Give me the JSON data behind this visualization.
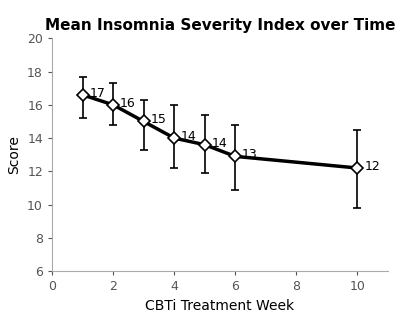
{
  "title": "Mean Insomnia Severity Index over Time",
  "xlabel": "CBTi Treatment Week",
  "ylabel": "Score",
  "x": [
    1,
    2,
    3,
    4,
    5,
    6,
    10
  ],
  "y": [
    16.6,
    16.0,
    15.0,
    14.0,
    13.6,
    12.9,
    12.2
  ],
  "yerr_lower": [
    1.4,
    1.2,
    1.7,
    1.8,
    1.7,
    2.0,
    2.4
  ],
  "yerr_upper": [
    1.1,
    1.3,
    1.3,
    2.0,
    1.8,
    1.9,
    2.3
  ],
  "labels": [
    "17",
    "16",
    "15",
    "14",
    "14",
    "13",
    "12"
  ],
  "label_offsets_x": [
    0.22,
    0.22,
    0.22,
    0.22,
    0.22,
    0.22,
    0.22
  ],
  "label_offsets_y": [
    0.1,
    0.1,
    0.1,
    0.1,
    0.1,
    0.1,
    0.1
  ],
  "xlim": [
    0,
    11
  ],
  "ylim": [
    6,
    20
  ],
  "xticks": [
    0,
    2,
    4,
    6,
    8,
    10
  ],
  "yticks": [
    6,
    8,
    10,
    12,
    14,
    16,
    18,
    20
  ],
  "bg_color": "#ffffff",
  "line_color": "#000000",
  "spine_color": "#aaaaaa",
  "marker_facecolor": "#ffffff",
  "marker_edgecolor": "#000000",
  "title_fontsize": 11,
  "axis_label_fontsize": 10,
  "tick_fontsize": 9,
  "annotation_fontsize": 9
}
